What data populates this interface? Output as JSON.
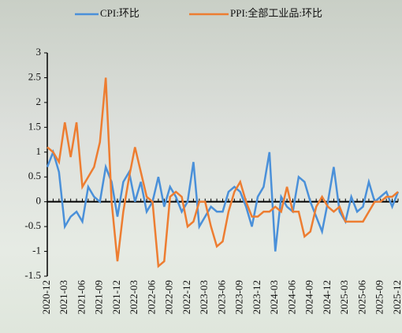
{
  "chart_data": {
    "type": "line",
    "categories": [
      "2020-12",
      null,
      null,
      "2021-03",
      null,
      null,
      "2021-06",
      null,
      null,
      "2021-09",
      null,
      null,
      "2021-12",
      null,
      null,
      "2022-03",
      null,
      null,
      "2022-06",
      null,
      null,
      "2022-09",
      null,
      null,
      "2022-12",
      null,
      null,
      "2023-03",
      null,
      null,
      "2023-06",
      null,
      null,
      "2023-09",
      null,
      null,
      "2023-12",
      null,
      null,
      "2024-03",
      null,
      null,
      "2024-06",
      null,
      null,
      "2024-09",
      null,
      null,
      "2024-12",
      null,
      null,
      "2025-03",
      null,
      null,
      "2025-06",
      null,
      null,
      "2025-09",
      null,
      null,
      "2025-12"
    ],
    "series": [
      {
        "name": "CPI:环比",
        "color": "#4a90d9",
        "values": [
          0.7,
          1.0,
          0.6,
          -0.5,
          -0.3,
          -0.2,
          -0.4,
          0.3,
          0.1,
          0.0,
          0.7,
          0.4,
          -0.3,
          0.4,
          0.6,
          0.0,
          0.4,
          -0.2,
          0.0,
          0.5,
          -0.1,
          0.3,
          0.1,
          -0.2,
          0.0,
          0.8,
          -0.5,
          -0.3,
          -0.1,
          -0.2,
          -0.2,
          0.2,
          0.3,
          0.2,
          -0.1,
          -0.5,
          0.1,
          0.3,
          1.0,
          -1.0,
          0.1,
          -0.1,
          -0.2,
          0.5,
          0.4,
          0.0,
          -0.3,
          -0.6,
          0.0,
          0.7,
          -0.2,
          -0.4,
          0.1,
          -0.2,
          -0.1,
          0.4,
          0.0,
          0.1,
          0.2,
          -0.1,
          0.2
        ]
      },
      {
        "name": "PPI:全部工业品:环比",
        "color": "#ed7d31",
        "values": [
          1.1,
          1.0,
          0.8,
          1.6,
          0.9,
          1.6,
          0.3,
          0.5,
          0.7,
          1.2,
          2.5,
          0.0,
          -1.2,
          -0.2,
          0.5,
          1.1,
          0.6,
          0.1,
          0.0,
          -1.3,
          -1.2,
          0.1,
          0.2,
          0.1,
          -0.5,
          -0.4,
          0.0,
          0.0,
          -0.5,
          -0.9,
          -0.8,
          -0.2,
          0.2,
          0.4,
          0.0,
          -0.3,
          -0.3,
          -0.2,
          -0.2,
          -0.1,
          -0.2,
          0.3,
          -0.2,
          -0.2,
          -0.7,
          -0.6,
          -0.1,
          0.1,
          -0.1,
          -0.2,
          -0.1,
          -0.4,
          -0.4,
          -0.4,
          -0.4,
          -0.2,
          0.0,
          0.0,
          0.1,
          0.1,
          0.2
        ]
      }
    ],
    "ylim": [
      -1.5,
      3
    ],
    "yticks": [
      3,
      2.5,
      2,
      1.5,
      1,
      0.5,
      0,
      -0.5,
      -1,
      -1.5
    ]
  }
}
